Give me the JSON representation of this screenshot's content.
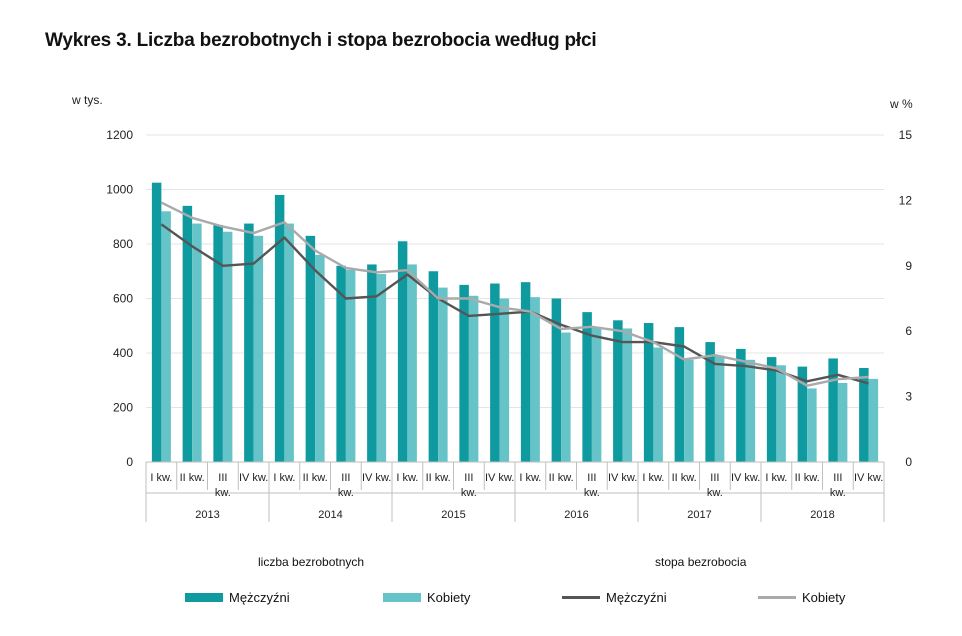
{
  "title": "Wykres 3. Liczba bezrobotnych i stopa bezrobocia według płci",
  "colors": {
    "men_bar": "#0f9aa0",
    "women_bar": "#66c4c8",
    "men_line": "#555555",
    "women_line": "#aaaaaa",
    "grid": "#e4e4e4",
    "axis": "#bfbfbf"
  },
  "group_labels": {
    "bars": "liczba bezrobotnych",
    "lines": "stopa bezrobocia"
  },
  "legend": [
    {
      "label": "Mężczyźni",
      "kind": "bar",
      "color": "#0f9aa0"
    },
    {
      "label": "Kobiety",
      "kind": "bar",
      "color": "#66c4c8"
    },
    {
      "label": "Mężczyźni",
      "kind": "line",
      "color": "#555555"
    },
    {
      "label": "Kobiety",
      "kind": "line",
      "color": "#aaaaaa"
    }
  ],
  "chart_data": {
    "type": "bar",
    "title": "Wykres 3. Liczba bezrobotnych i stopa bezrobocia według płci",
    "ylabel_left": "w tys.",
    "ylabel_right": "w %",
    "ylim_left": [
      0,
      1200
    ],
    "ylim_right": [
      0,
      15
    ],
    "yticks_left": [
      "0",
      "200",
      "400",
      "600",
      "800",
      "1000",
      "1200"
    ],
    "yticks_right": [
      "0",
      "3",
      "6",
      "9",
      "12",
      "15"
    ],
    "grid": true,
    "years": [
      "2013",
      "2014",
      "2015",
      "2016",
      "2017",
      "2018"
    ],
    "quarters": [
      "I kw.",
      "II kw.",
      "III kw.",
      "IV kw."
    ],
    "categories": [
      "I kw. 2013",
      "II kw. 2013",
      "III kw. 2013",
      "IV kw. 2013",
      "I kw. 2014",
      "II kw. 2014",
      "III kw. 2014",
      "IV kw. 2014",
      "I kw. 2015",
      "II kw. 2015",
      "III kw. 2015",
      "IV kw. 2015",
      "I kw. 2016",
      "II kw. 2016",
      "III kw. 2016",
      "IV kw. 2016",
      "I kw. 2017",
      "II kw. 2017",
      "III kw. 2017",
      "IV kw. 2017",
      "I kw. 2018",
      "II kw. 2018",
      "III kw. 2018",
      "IV kw. 2018"
    ],
    "bar_series": [
      {
        "name": "Mężczyźni",
        "axis": "left",
        "values": [
          1025,
          940,
          870,
          875,
          980,
          830,
          720,
          725,
          810,
          700,
          650,
          655,
          660,
          600,
          550,
          520,
          510,
          495,
          440,
          415,
          385,
          350,
          380,
          345
        ]
      },
      {
        "name": "Kobiety",
        "axis": "left",
        "values": [
          920,
          875,
          845,
          830,
          875,
          760,
          705,
          690,
          725,
          640,
          610,
          600,
          605,
          475,
          495,
          490,
          420,
          375,
          390,
          375,
          355,
          270,
          290,
          305
        ]
      }
    ],
    "line_series": [
      {
        "name": "Mężczyźni",
        "axis": "right",
        "values": [
          10.9,
          9.9,
          9.0,
          9.1,
          10.3,
          8.8,
          7.5,
          7.6,
          8.6,
          7.5,
          6.7,
          6.8,
          6.9,
          6.3,
          5.8,
          5.5,
          5.5,
          5.3,
          4.5,
          4.4,
          4.2,
          3.7,
          4.0,
          3.6
        ]
      },
      {
        "name": "Kobiety",
        "axis": "right",
        "values": [
          11.9,
          11.2,
          10.8,
          10.5,
          11.0,
          9.7,
          8.9,
          8.7,
          8.8,
          7.5,
          7.5,
          7.1,
          6.9,
          6.1,
          6.2,
          6.0,
          5.5,
          4.7,
          4.9,
          4.6,
          4.3,
          3.5,
          3.8,
          3.9
        ]
      }
    ]
  }
}
